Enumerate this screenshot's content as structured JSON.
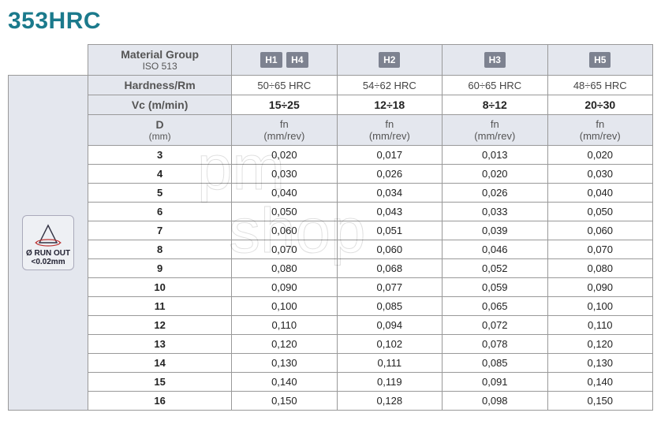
{
  "title": "353HRC",
  "badge": {
    "line1": "Ø RUN OUT",
    "line2": "<0.02mm"
  },
  "header": {
    "material_label": "Material Group",
    "material_sub": "ISO 513",
    "hardness_label": "Hardness/Rm",
    "vc_label": "Vc (m/min)",
    "d_label": "D",
    "d_sub": "(mm)",
    "fn_label": "fn",
    "fn_sub": "(mm/rev)"
  },
  "groups": [
    {
      "pills": [
        "H1",
        "H4"
      ],
      "hardness": "50÷65 HRC",
      "vc": "15÷25"
    },
    {
      "pills": [
        "H2"
      ],
      "hardness": "54÷62 HRC",
      "vc": "12÷18"
    },
    {
      "pills": [
        "H3"
      ],
      "hardness": "60÷65 HRC",
      "vc": "8÷12"
    },
    {
      "pills": [
        "H5"
      ],
      "hardness": "48÷65 HRC",
      "vc": "20÷30"
    }
  ],
  "rows": [
    {
      "d": "3",
      "v": [
        "0,020",
        "0,017",
        "0,013",
        "0,020"
      ]
    },
    {
      "d": "4",
      "v": [
        "0,030",
        "0,026",
        "0,020",
        "0,030"
      ]
    },
    {
      "d": "5",
      "v": [
        "0,040",
        "0,034",
        "0,026",
        "0,040"
      ]
    },
    {
      "d": "6",
      "v": [
        "0,050",
        "0,043",
        "0,033",
        "0,050"
      ]
    },
    {
      "d": "7",
      "v": [
        "0,060",
        "0,051",
        "0,039",
        "0,060"
      ]
    },
    {
      "d": "8",
      "v": [
        "0,070",
        "0,060",
        "0,046",
        "0,070"
      ]
    },
    {
      "d": "9",
      "v": [
        "0,080",
        "0,068",
        "0,052",
        "0,080"
      ]
    },
    {
      "d": "10",
      "v": [
        "0,090",
        "0,077",
        "0,059",
        "0,090"
      ]
    },
    {
      "d": "11",
      "v": [
        "0,100",
        "0,085",
        "0,065",
        "0,100"
      ]
    },
    {
      "d": "12",
      "v": [
        "0,110",
        "0,094",
        "0,072",
        "0,110"
      ]
    },
    {
      "d": "13",
      "v": [
        "0,120",
        "0,102",
        "0,078",
        "0,120"
      ]
    },
    {
      "d": "14",
      "v": [
        "0,130",
        "0,111",
        "0,085",
        "0,130"
      ]
    },
    {
      "d": "15",
      "v": [
        "0,140",
        "0,119",
        "0,091",
        "0,140"
      ]
    },
    {
      "d": "16",
      "v": [
        "0,150",
        "0,128",
        "0,098",
        "0,150"
      ]
    }
  ],
  "watermark": {
    "top": "pm",
    "bottom": "shop"
  }
}
